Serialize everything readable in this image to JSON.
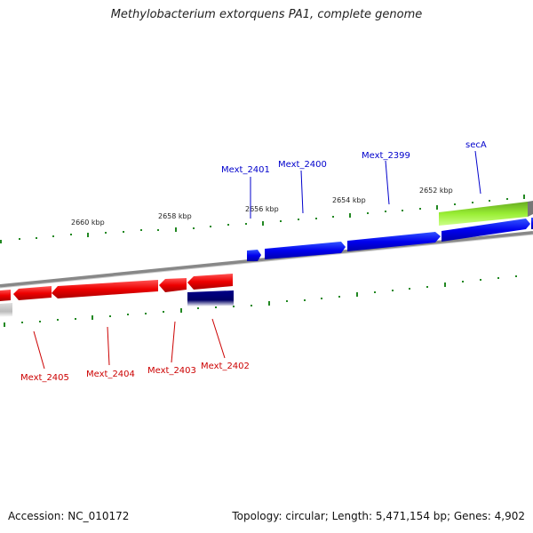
{
  "title": "Methylobacterium extorquens PA1, complete genome",
  "footer": {
    "accession": "Accession: NC_010172",
    "summary": "Topology: circular; Length: 5,471,154 bp; Genes: 4,902"
  },
  "ticks": [
    "2660 kbp",
    "2658 kbp",
    "2656 kbp",
    "2654 kbp",
    "2652 kbp"
  ],
  "genes_forward": [
    "Mext_2401",
    "Mext_2400",
    "Mext_2399",
    "secA"
  ],
  "genes_reverse": [
    "Mext_2405",
    "Mext_2404",
    "Mext_2403",
    "Mext_2402"
  ],
  "colors": {
    "forward_cds": "#0000ee",
    "reverse_cds": "#ee0000",
    "forward_label": "#0000cc",
    "reverse_label": "#cc0000",
    "highlight_gene": "#88ee22",
    "tick": "#228822",
    "backbone": "#888888"
  }
}
